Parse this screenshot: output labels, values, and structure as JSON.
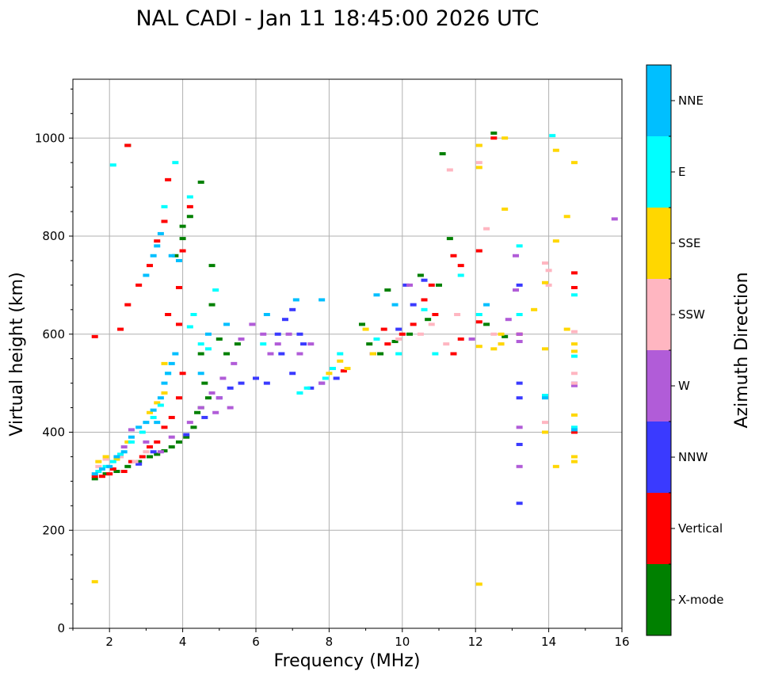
{
  "chart_data": {
    "type": "scatter",
    "title": "NAL CADI - Jan 11 18:45:00 2026 UTC",
    "xlabel": "Frequency (MHz)",
    "ylabel": "Virtual height (km)",
    "xlim": [
      1,
      16
    ],
    "ylim": [
      0,
      1120
    ],
    "xticks": [
      2,
      4,
      6,
      8,
      10,
      12,
      14,
      16
    ],
    "xtick_labels": [
      "2",
      "4",
      "6",
      "8",
      "10",
      "12",
      "14",
      "16"
    ],
    "yticks": [
      0,
      200,
      400,
      600,
      800,
      1000
    ],
    "ytick_labels": [
      "0",
      "200",
      "400",
      "600",
      "800",
      "1000"
    ],
    "grid": true,
    "colorbar": {
      "title": "Azimuth Direction",
      "categories": [
        {
          "name": "X-mode",
          "color": "#008000"
        },
        {
          "name": "Vertical",
          "color": "#ff0000"
        },
        {
          "name": "NNW",
          "color": "#3a3aff"
        },
        {
          "name": "W",
          "color": "#b15cd8"
        },
        {
          "name": "SSW",
          "color": "#ffb6c1"
        },
        {
          "name": "SSE",
          "color": "#ffd700"
        },
        {
          "name": "E",
          "color": "#00ffff"
        },
        {
          "name": "NNE",
          "color": "#00bfff"
        }
      ]
    },
    "series": [
      {
        "name": "X-mode",
        "points": [
          [
            1.6,
            305
          ],
          [
            1.9,
            315
          ],
          [
            2.2,
            320
          ],
          [
            2.5,
            330
          ],
          [
            2.8,
            340
          ],
          [
            3.1,
            350
          ],
          [
            3.3,
            355
          ],
          [
            3.5,
            362
          ],
          [
            3.7,
            370
          ],
          [
            3.9,
            380
          ],
          [
            4.1,
            390
          ],
          [
            4.3,
            410
          ],
          [
            4.5,
            450
          ],
          [
            4.7,
            470
          ],
          [
            2.5,
            985
          ],
          [
            4.0,
            820
          ],
          [
            4.2,
            840
          ],
          [
            4.5,
            910
          ],
          [
            3.8,
            760
          ],
          [
            4.0,
            795
          ],
          [
            4.8,
            740
          ],
          [
            4.8,
            660
          ],
          [
            4.5,
            560
          ],
          [
            5.0,
            590
          ],
          [
            5.5,
            580
          ],
          [
            8.9,
            620
          ],
          [
            9.1,
            580
          ],
          [
            9.4,
            560
          ],
          [
            9.8,
            585
          ],
          [
            10.2,
            600
          ],
          [
            10.7,
            630
          ],
          [
            11.3,
            795
          ],
          [
            11.1,
            968
          ],
          [
            12.5,
            1010
          ],
          [
            12.3,
            620
          ],
          [
            12.8,
            595
          ],
          [
            9.6,
            690
          ],
          [
            10.5,
            720
          ],
          [
            11.0,
            700
          ],
          [
            4.6,
            500
          ],
          [
            4.4,
            440
          ],
          [
            5.2,
            560
          ]
        ]
      },
      {
        "name": "Vertical",
        "points": [
          [
            1.6,
            310
          ],
          [
            1.8,
            310
          ],
          [
            2.0,
            315
          ],
          [
            2.1,
            325
          ],
          [
            2.4,
            320
          ],
          [
            2.6,
            340
          ],
          [
            2.9,
            350
          ],
          [
            3.1,
            370
          ],
          [
            3.3,
            380
          ],
          [
            3.5,
            410
          ],
          [
            3.7,
            430
          ],
          [
            3.9,
            470
          ],
          [
            4.0,
            520
          ],
          [
            3.9,
            620
          ],
          [
            3.9,
            695
          ],
          [
            4.2,
            860
          ],
          [
            3.6,
            915
          ],
          [
            3.5,
            830
          ],
          [
            3.3,
            790
          ],
          [
            3.1,
            740
          ],
          [
            2.8,
            700
          ],
          [
            2.5,
            660
          ],
          [
            2.3,
            610
          ],
          [
            1.6,
            595
          ],
          [
            2.5,
            985
          ],
          [
            3.6,
            640
          ],
          [
            4.0,
            770
          ],
          [
            12.5,
            1000
          ],
          [
            12.1,
            770
          ],
          [
            12.1,
            625
          ],
          [
            13.2,
            600
          ],
          [
            14.7,
            725
          ],
          [
            14.7,
            695
          ],
          [
            14.7,
            400
          ],
          [
            9.2,
            560
          ],
          [
            9.6,
            580
          ],
          [
            10.0,
            600
          ],
          [
            10.3,
            620
          ],
          [
            10.8,
            700
          ],
          [
            11.4,
            560
          ],
          [
            11.6,
            590
          ],
          [
            11.4,
            760
          ],
          [
            11.6,
            740
          ],
          [
            10.9,
            640
          ],
          [
            8.4,
            525
          ],
          [
            9.5,
            610
          ],
          [
            10.6,
            670
          ]
        ]
      },
      {
        "name": "NNW",
        "points": [
          [
            2.8,
            335
          ],
          [
            3.2,
            360
          ],
          [
            4.1,
            395
          ],
          [
            4.6,
            430
          ],
          [
            5.0,
            470
          ],
          [
            5.3,
            490
          ],
          [
            5.6,
            500
          ],
          [
            6.0,
            510
          ],
          [
            6.3,
            500
          ],
          [
            6.7,
            560
          ],
          [
            7.0,
            520
          ],
          [
            7.2,
            600
          ],
          [
            7.5,
            490
          ],
          [
            7.8,
            500
          ],
          [
            8.2,
            510
          ],
          [
            6.6,
            600
          ],
          [
            7.0,
            650
          ],
          [
            6.8,
            630
          ],
          [
            7.3,
            580
          ],
          [
            9.2,
            560
          ],
          [
            9.9,
            610
          ],
          [
            10.3,
            660
          ],
          [
            13.2,
            700
          ],
          [
            13.2,
            500
          ],
          [
            13.2,
            470
          ],
          [
            13.2,
            375
          ],
          [
            13.2,
            255
          ],
          [
            14.7,
            500
          ],
          [
            10.1,
            700
          ],
          [
            10.6,
            710
          ]
        ]
      },
      {
        "name": "W",
        "points": [
          [
            2.4,
            370
          ],
          [
            2.6,
            405
          ],
          [
            3.0,
            380
          ],
          [
            3.4,
            360
          ],
          [
            3.7,
            390
          ],
          [
            4.2,
            420
          ],
          [
            4.5,
            450
          ],
          [
            4.8,
            480
          ],
          [
            5.1,
            510
          ],
          [
            5.4,
            540
          ],
          [
            5.6,
            590
          ],
          [
            5.9,
            620
          ],
          [
            6.2,
            600
          ],
          [
            6.4,
            560
          ],
          [
            6.6,
            580
          ],
          [
            6.9,
            600
          ],
          [
            7.2,
            560
          ],
          [
            7.5,
            580
          ],
          [
            7.8,
            500
          ],
          [
            5.0,
            470
          ],
          [
            5.3,
            450
          ],
          [
            4.9,
            440
          ],
          [
            13.1,
            760
          ],
          [
            13.1,
            690
          ],
          [
            13.2,
            600
          ],
          [
            13.2,
            585
          ],
          [
            13.2,
            330
          ],
          [
            13.2,
            410
          ],
          [
            14.7,
            495
          ],
          [
            15.8,
            835
          ],
          [
            11.9,
            590
          ],
          [
            10.2,
            700
          ],
          [
            12.9,
            630
          ]
        ]
      },
      {
        "name": "SSW",
        "points": [
          [
            1.7,
            330
          ],
          [
            1.9,
            345
          ],
          [
            2.3,
            350
          ],
          [
            2.7,
            340
          ],
          [
            3.0,
            360
          ],
          [
            12.1,
            985
          ],
          [
            12.1,
            950
          ],
          [
            12.3,
            815
          ],
          [
            12.5,
            600
          ],
          [
            12.7,
            580
          ],
          [
            13.9,
            745
          ],
          [
            14.0,
            730
          ],
          [
            14.0,
            700
          ],
          [
            13.9,
            420
          ],
          [
            14.7,
            605
          ],
          [
            14.7,
            520
          ],
          [
            14.7,
            500
          ],
          [
            11.3,
            935
          ],
          [
            10.8,
            620
          ],
          [
            11.5,
            640
          ],
          [
            11.2,
            580
          ],
          [
            9.9,
            590
          ],
          [
            10.5,
            600
          ]
        ]
      },
      {
        "name": "SSE",
        "points": [
          [
            1.6,
            95
          ],
          [
            1.7,
            340
          ],
          [
            1.9,
            350
          ],
          [
            2.2,
            345
          ],
          [
            2.5,
            380
          ],
          [
            3.1,
            440
          ],
          [
            3.3,
            460
          ],
          [
            3.5,
            480
          ],
          [
            3.5,
            540
          ],
          [
            8.0,
            520
          ],
          [
            8.3,
            545
          ],
          [
            8.5,
            530
          ],
          [
            9.0,
            610
          ],
          [
            9.2,
            560
          ],
          [
            12.1,
            940
          ],
          [
            12.1,
            985
          ],
          [
            12.8,
            1000
          ],
          [
            12.8,
            855
          ],
          [
            12.7,
            600
          ],
          [
            12.7,
            580
          ],
          [
            13.6,
            650
          ],
          [
            13.9,
            705
          ],
          [
            13.9,
            570
          ],
          [
            13.9,
            400
          ],
          [
            14.2,
            975
          ],
          [
            14.2,
            790
          ],
          [
            14.2,
            330
          ],
          [
            14.5,
            840
          ],
          [
            14.5,
            610
          ],
          [
            14.7,
            950
          ],
          [
            14.7,
            580
          ],
          [
            14.7,
            565
          ],
          [
            14.7,
            435
          ],
          [
            14.7,
            350
          ],
          [
            14.7,
            340
          ],
          [
            12.1,
            90
          ],
          [
            12.1,
            575
          ],
          [
            12.5,
            570
          ]
        ]
      },
      {
        "name": "E",
        "points": [
          [
            1.7,
            320
          ],
          [
            1.9,
            330
          ],
          [
            2.1,
            340
          ],
          [
            2.3,
            355
          ],
          [
            2.6,
            380
          ],
          [
            2.9,
            400
          ],
          [
            3.2,
            430
          ],
          [
            3.4,
            455
          ],
          [
            3.6,
            520
          ],
          [
            4.2,
            615
          ],
          [
            4.5,
            580
          ],
          [
            4.7,
            570
          ],
          [
            3.8,
            950
          ],
          [
            4.2,
            880
          ],
          [
            3.5,
            860
          ],
          [
            4.3,
            640
          ],
          [
            4.9,
            690
          ],
          [
            7.2,
            480
          ],
          [
            7.4,
            490
          ],
          [
            7.9,
            510
          ],
          [
            9.3,
            590
          ],
          [
            10.6,
            650
          ],
          [
            9.9,
            560
          ],
          [
            10.9,
            560
          ],
          [
            11.6,
            720
          ],
          [
            12.1,
            640
          ],
          [
            13.2,
            640
          ],
          [
            13.9,
            475
          ],
          [
            14.7,
            680
          ],
          [
            14.7,
            555
          ],
          [
            14.7,
            410
          ],
          [
            14.1,
            1005
          ],
          [
            13.2,
            780
          ],
          [
            2.1,
            945
          ],
          [
            8.1,
            530
          ],
          [
            8.3,
            560
          ],
          [
            6.2,
            580
          ]
        ]
      },
      {
        "name": "NNE",
        "points": [
          [
            1.6,
            315
          ],
          [
            1.8,
            325
          ],
          [
            2.0,
            330
          ],
          [
            2.2,
            350
          ],
          [
            2.4,
            360
          ],
          [
            2.6,
            390
          ],
          [
            2.8,
            410
          ],
          [
            3.0,
            420
          ],
          [
            3.2,
            445
          ],
          [
            3.4,
            470
          ],
          [
            3.5,
            500
          ],
          [
            3.6,
            520
          ],
          [
            3.7,
            540
          ],
          [
            3.8,
            560
          ],
          [
            3.3,
            780
          ],
          [
            3.4,
            805
          ],
          [
            3.2,
            760
          ],
          [
            3.0,
            720
          ],
          [
            3.7,
            760
          ],
          [
            3.9,
            750
          ],
          [
            4.5,
            520
          ],
          [
            4.7,
            600
          ],
          [
            5.2,
            620
          ],
          [
            6.3,
            640
          ],
          [
            7.1,
            670
          ],
          [
            7.8,
            670
          ],
          [
            9.3,
            680
          ],
          [
            9.8,
            660
          ],
          [
            12.3,
            660
          ],
          [
            13.9,
            470
          ],
          [
            14.7,
            405
          ],
          [
            3.3,
            420
          ]
        ]
      }
    ]
  }
}
